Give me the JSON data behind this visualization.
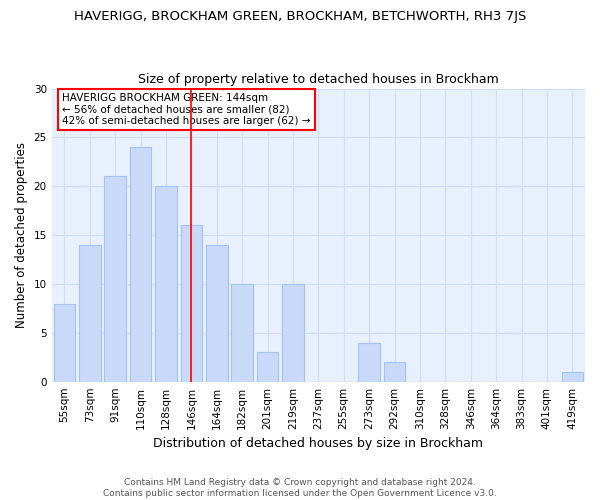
{
  "title": "HAVERIGG, BROCKHAM GREEN, BROCKHAM, BETCHWORTH, RH3 7JS",
  "subtitle": "Size of property relative to detached houses in Brockham",
  "xlabel": "Distribution of detached houses by size in Brockham",
  "ylabel": "Number of detached properties",
  "bin_labels": [
    "55sqm",
    "73sqm",
    "91sqm",
    "110sqm",
    "128sqm",
    "146sqm",
    "164sqm",
    "182sqm",
    "201sqm",
    "219sqm",
    "237sqm",
    "255sqm",
    "273sqm",
    "292sqm",
    "310sqm",
    "328sqm",
    "346sqm",
    "364sqm",
    "383sqm",
    "401sqm",
    "419sqm"
  ],
  "bar_values": [
    8,
    14,
    21,
    24,
    20,
    16,
    14,
    10,
    3,
    10,
    0,
    0,
    4,
    2,
    0,
    0,
    0,
    0,
    0,
    0,
    1
  ],
  "bar_color": "#c9daf8",
  "bar_edge_color": "#a4c2f4",
  "grid_color": "#d0ddf8",
  "bg_color": "#e8f0fe",
  "ylim": [
    0,
    30
  ],
  "yticks": [
    0,
    5,
    10,
    15,
    20,
    25,
    30
  ],
  "red_line_index": 5,
  "annotation_title": "HAVERIGG BROCKHAM GREEN: 144sqm",
  "annotation_line1": "← 56% of detached houses are smaller (82)",
  "annotation_line2": "42% of semi-detached houses are larger (62) →",
  "footer1": "Contains HM Land Registry data © Crown copyright and database right 2024.",
  "footer2": "Contains public sector information licensed under the Open Government Licence v3.0.",
  "title_fontsize": 9.5,
  "subtitle_fontsize": 9,
  "ylabel_fontsize": 8.5,
  "xlabel_fontsize": 9,
  "tick_fontsize": 7.5,
  "annotation_fontsize": 7.5,
  "footer_fontsize": 6.5
}
